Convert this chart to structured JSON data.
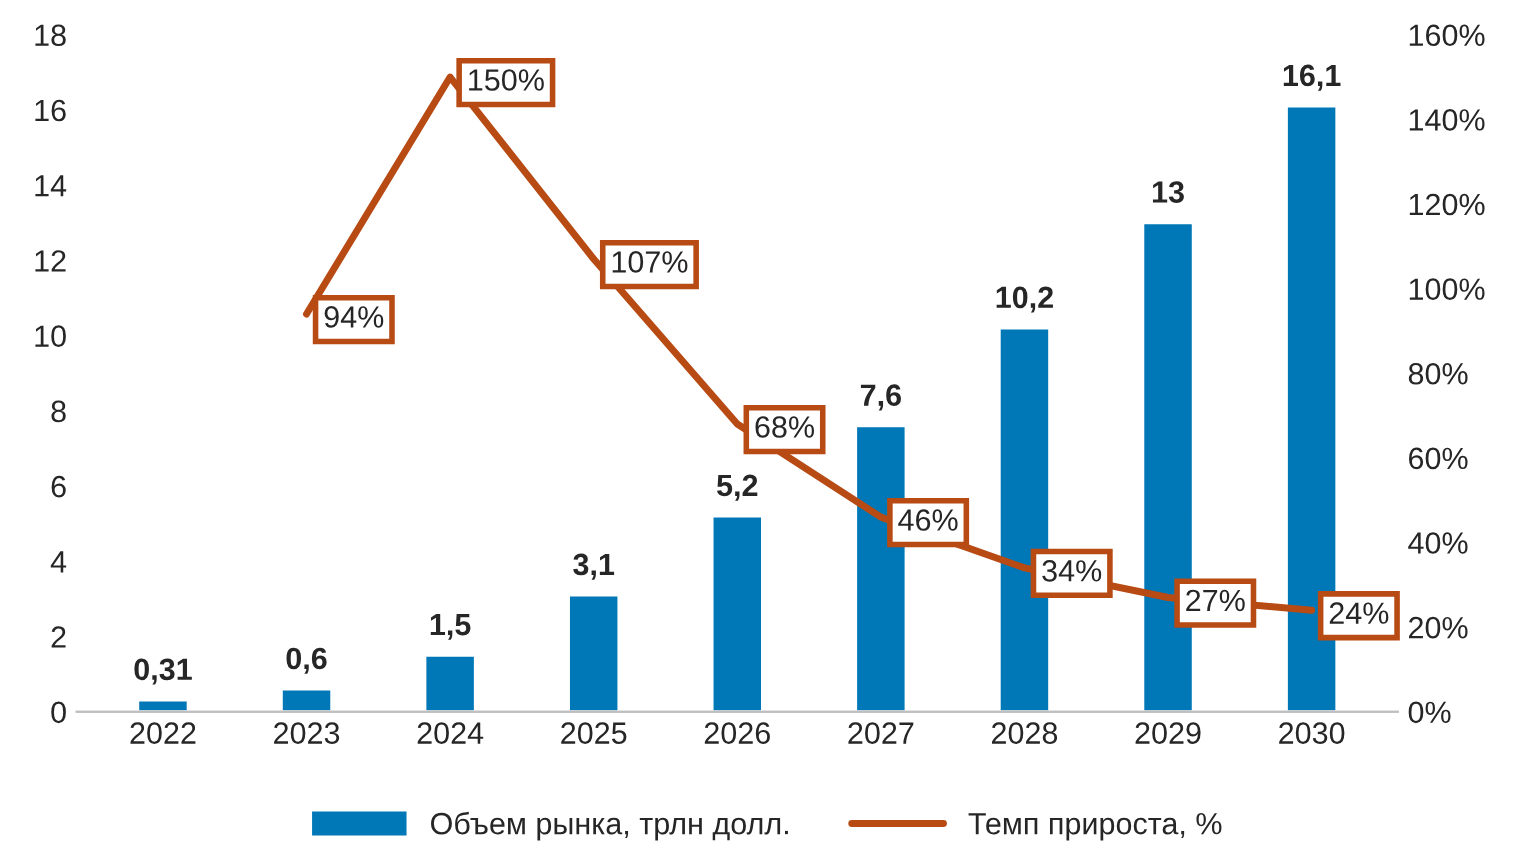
{
  "chart_data": {
    "type": "bar",
    "categories": [
      "2022",
      "2023",
      "2024",
      "2025",
      "2026",
      "2027",
      "2028",
      "2029",
      "2030"
    ],
    "series": [
      {
        "name": "Объем рынка, трлн долл.",
        "color": "#0077b6",
        "values": [
          0.31,
          0.6,
          1.5,
          3.1,
          5.2,
          7.6,
          10.2,
          13,
          16.1
        ],
        "value_labels": [
          "0,31",
          "0,6",
          "1,5",
          "3,1",
          "5,2",
          "7,6",
          "10,2",
          "13",
          "16,1"
        ]
      },
      {
        "name": "Темп прироста, %",
        "type": "line",
        "axis": "y2",
        "color": "#b84a14",
        "values": [
          null,
          94,
          150,
          107,
          68,
          46,
          34,
          27,
          24
        ],
        "value_labels": [
          null,
          "94%",
          "150%",
          "107%",
          "68%",
          "46%",
          "34%",
          "27%",
          "24%"
        ]
      }
    ],
    "ylim": [
      0,
      18
    ],
    "yticks": [
      0,
      2,
      4,
      6,
      8,
      10,
      12,
      14,
      16,
      18
    ],
    "y2lim": [
      0,
      160
    ],
    "y2ticks": [
      {
        "value": 0,
        "label": "0%"
      },
      {
        "value": 20,
        "label": "20%"
      },
      {
        "value": 40,
        "label": "40%"
      },
      {
        "value": 60,
        "label": "60%"
      },
      {
        "value": 80,
        "label": "80%"
      },
      {
        "value": 100,
        "label": "100%"
      },
      {
        "value": 120,
        "label": "120%"
      },
      {
        "value": 140,
        "label": "140%"
      },
      {
        "value": 160,
        "label": "160%"
      }
    ],
    "grid": false,
    "legend": "bottom",
    "marker": "none",
    "line_style": "solid"
  }
}
